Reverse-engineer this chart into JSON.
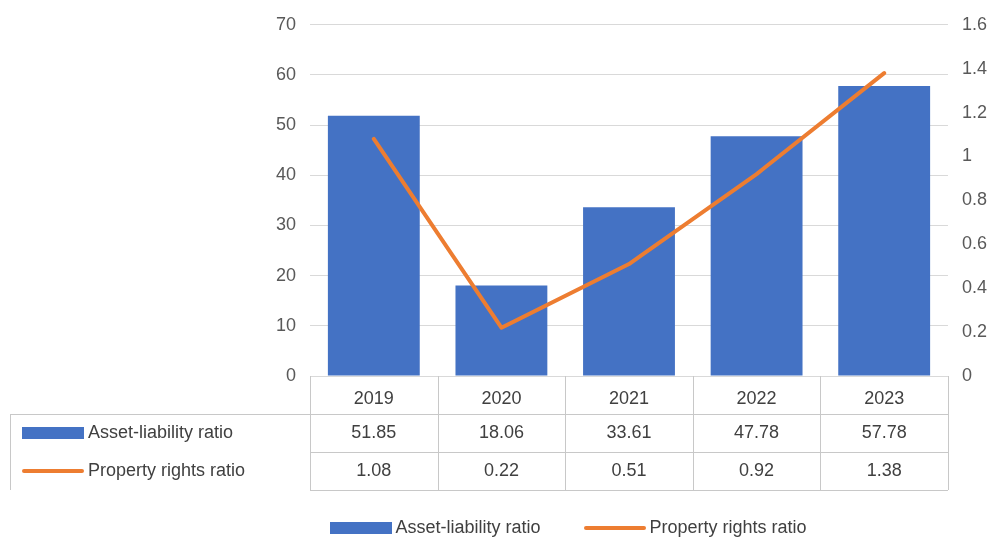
{
  "chart_data": {
    "type": "bar",
    "categories": [
      "2019",
      "2020",
      "2021",
      "2022",
      "2023"
    ],
    "series": [
      {
        "name": "Asset-liability ratio",
        "color": "#4472c4",
        "values": [
          51.85,
          18.06,
          33.61,
          47.78,
          57.78
        ]
      },
      {
        "name": "Property rights ratio",
        "type": "line",
        "axis": "y2",
        "color": "#ed7d31",
        "values": [
          1.08,
          0.22,
          0.51,
          0.92,
          1.38
        ]
      }
    ],
    "ylim": [
      0,
      70
    ],
    "yticks": [
      0,
      10,
      20,
      30,
      40,
      50,
      60,
      70
    ],
    "y2lim": [
      0,
      1.6
    ],
    "y2ticks": [
      0,
      0.2,
      0.4,
      0.6,
      0.8,
      1,
      1.2,
      1.4,
      1.6
    ],
    "grid": "y",
    "legend": "bottom",
    "marker": "none",
    "data_labels": true
  }
}
